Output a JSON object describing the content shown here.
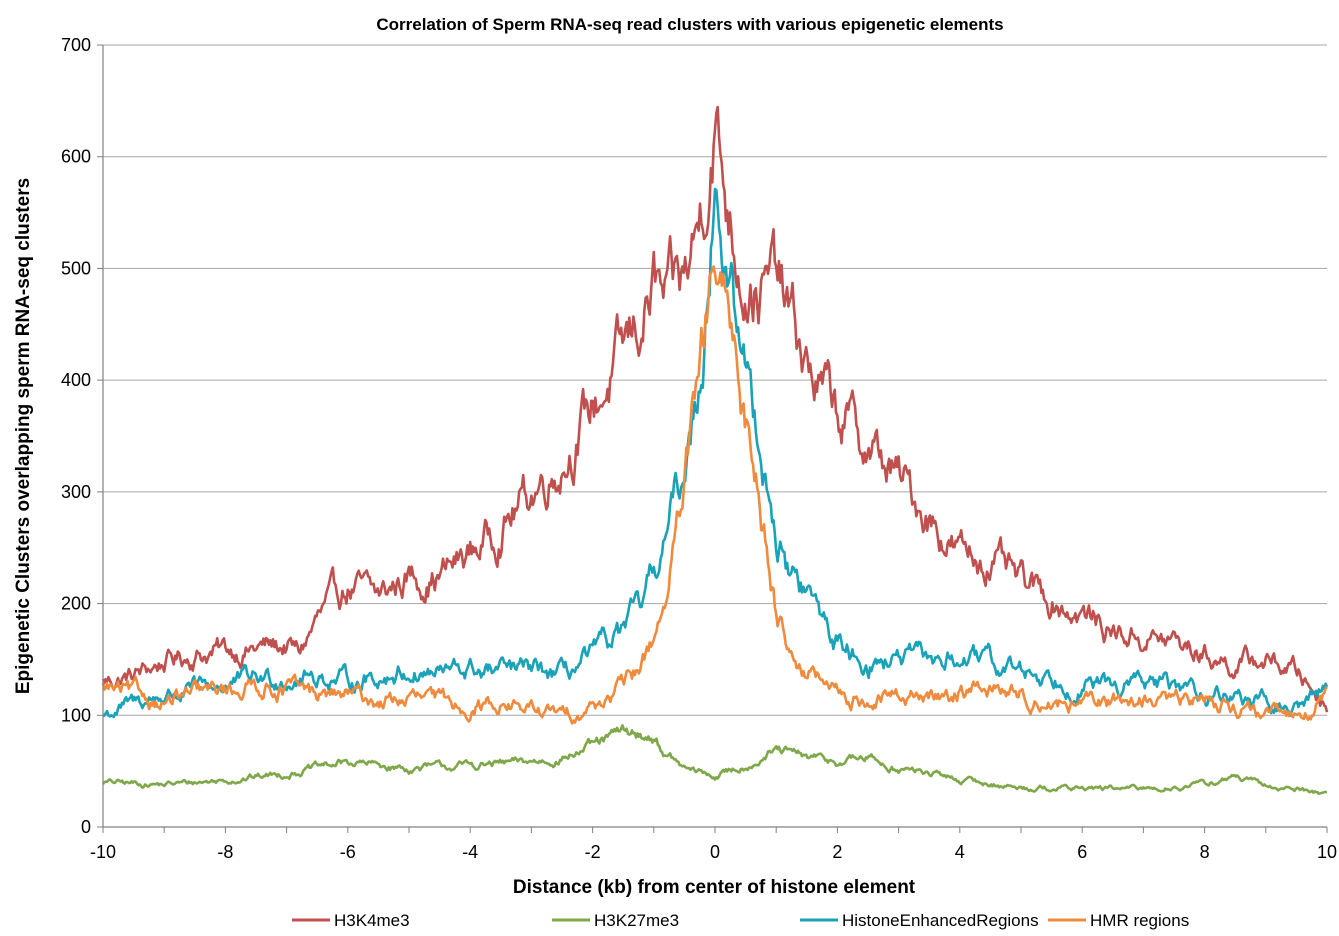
{
  "chart_data": {
    "type": "line",
    "title": "Correlation of Sperm RNA-seq read clusters with various epigenetic elements",
    "xlabel": "Distance (kb) from center of histone element",
    "ylabel": "Epigenetic Clusters overlapping sperm RNA-seq clusters",
    "xlim": [
      -10,
      10
    ],
    "ylim": [
      0,
      700
    ],
    "xticks": [
      -10,
      -8,
      -6,
      -4,
      -2,
      0,
      2,
      4,
      6,
      8,
      10
    ],
    "yticks": [
      0,
      100,
      200,
      300,
      400,
      500,
      600,
      700
    ],
    "grid": "horizontal",
    "legend_position": "bottom",
    "series": [
      {
        "name": "H3K4me3",
        "color": "#c0504d",
        "x": [
          -10,
          -9.5,
          -9,
          -8.5,
          -8,
          -7.5,
          -7,
          -6.8,
          -6.5,
          -6,
          -5.5,
          -5,
          -4.5,
          -4,
          -3.5,
          -3,
          -2.5,
          -2,
          -1.5,
          -1.2,
          -1,
          -0.8,
          -0.5,
          -0.3,
          -0.1,
          0,
          0.1,
          0.3,
          0.5,
          0.8,
          1,
          1.5,
          2,
          2.5,
          3,
          3.5,
          4,
          4.5,
          5,
          5.5,
          6,
          6.5,
          7,
          7.5,
          8,
          8.5,
          9,
          9.5,
          10
        ],
        "y": [
          130,
          135,
          148,
          155,
          158,
          160,
          162,
          155,
          185,
          215,
          205,
          225,
          225,
          245,
          270,
          300,
          330,
          375,
          420,
          455,
          485,
          460,
          485,
          530,
          600,
          640,
          590,
          535,
          500,
          480,
          490,
          410,
          370,
          340,
          310,
          280,
          245,
          240,
          215,
          205,
          190,
          175,
          170,
          165,
          155,
          145,
          150,
          140,
          110
        ]
      },
      {
        "name": "H3K27me3",
        "color": "#7fa84a",
        "x": [
          -10,
          -9,
          -8,
          -7,
          -6,
          -5,
          -4,
          -3,
          -2.5,
          -2,
          -1.5,
          -1,
          -0.8,
          -0.5,
          0,
          0.5,
          1,
          1.5,
          2,
          2.5,
          3,
          3.5,
          4,
          5,
          6,
          7,
          8,
          8.5,
          9,
          9.5,
          10
        ],
        "y": [
          40,
          38,
          42,
          48,
          58,
          52,
          55,
          58,
          62,
          72,
          85,
          80,
          65,
          52,
          45,
          55,
          68,
          62,
          58,
          62,
          52,
          48,
          42,
          35,
          35,
          34,
          38,
          45,
          36,
          34,
          30
        ]
      },
      {
        "name": "HistoneEnhancedRegions",
        "color": "#1aa2b8",
        "x": [
          -10,
          -9.5,
          -9,
          -8.5,
          -8,
          -7.5,
          -7,
          -6.5,
          -6,
          -5.5,
          -5,
          -4.5,
          -4,
          -3.5,
          -3,
          -2.5,
          -2,
          -1.5,
          -1.2,
          -1,
          -0.8,
          -0.6,
          -0.4,
          -0.2,
          -0.1,
          0,
          0.1,
          0.2,
          0.4,
          0.6,
          0.8,
          1,
          1.2,
          1.5,
          2,
          2.5,
          3,
          3.5,
          4,
          4.5,
          5,
          5.5,
          6,
          6.5,
          7,
          7.5,
          8,
          8.5,
          9,
          9.5,
          10
        ],
        "y": [
          100,
          110,
          118,
          122,
          128,
          132,
          135,
          135,
          130,
          135,
          140,
          138,
          140,
          138,
          140,
          135,
          152,
          175,
          195,
          225,
          260,
          300,
          350,
          430,
          520,
          580,
          545,
          480,
          440,
          380,
          330,
          260,
          230,
          210,
          165,
          148,
          150,
          148,
          152,
          145,
          140,
          135,
          128,
          125,
          130,
          125,
          120,
          118,
          110,
          105,
          128
        ]
      },
      {
        "name": "HMR regions",
        "color": "#f08a3c",
        "x": [
          -10,
          -9.5,
          -9,
          -8.5,
          -8,
          -7.5,
          -7,
          -6.5,
          -6,
          -5.5,
          -5,
          -4.5,
          -4,
          -3.5,
          -3,
          -2.5,
          -2,
          -1.5,
          -1.2,
          -1,
          -0.8,
          -0.6,
          -0.4,
          -0.2,
          -0.1,
          0,
          0.1,
          0.2,
          0.4,
          0.6,
          0.8,
          1,
          1.2,
          1.5,
          2,
          2.5,
          3,
          3.5,
          4,
          4.5,
          5,
          5.5,
          6,
          6.5,
          7,
          7.5,
          8,
          8.5,
          9,
          9.5,
          10
        ],
        "y": [
          125,
          118,
          112,
          118,
          122,
          128,
          125,
          118,
          118,
          112,
          115,
          112,
          108,
          112,
          105,
          100,
          108,
          125,
          145,
          170,
          210,
          265,
          340,
          420,
          470,
          505,
          470,
          440,
          400,
          340,
          270,
          200,
          165,
          140,
          118,
          112,
          118,
          115,
          122,
          125,
          118,
          112,
          108,
          112,
          115,
          112,
          115,
          110,
          98,
          100,
          115
        ]
      }
    ]
  }
}
